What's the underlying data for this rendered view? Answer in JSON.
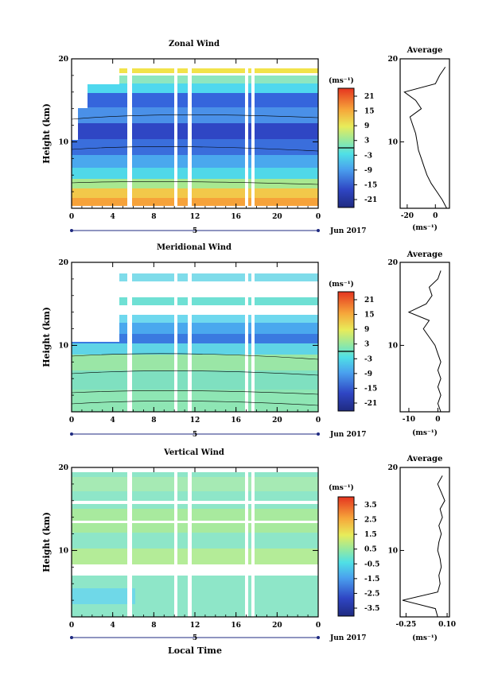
{
  "figure": {
    "xlabel": "Local Time",
    "date_label": "Jun 2017",
    "day_label": "5"
  },
  "chart_data": [
    {
      "type": "heatmap",
      "title": "Zonal Wind",
      "ylabel": "Height (km)",
      "xlim": [
        0,
        24
      ],
      "ylim": [
        2,
        20
      ],
      "x_ticks": [
        "0",
        "4",
        "8",
        "12",
        "16",
        "20",
        "0"
      ],
      "y_ticks": [
        "10",
        "20"
      ],
      "colorbar": {
        "unit": "(ms⁻¹)",
        "ticks": [
          "21",
          "15",
          "9",
          "3",
          "-3",
          "-9",
          "-15",
          "-21"
        ],
        "range": [
          -24,
          24
        ]
      },
      "profile": {
        "title": "Average",
        "unit": "(ms⁻¹)",
        "x_ticks": [
          "-20",
          "0"
        ],
        "xlim": [
          -25,
          10
        ],
        "heights": [
          2,
          3,
          4,
          5,
          6,
          7,
          8,
          9,
          10,
          11,
          12,
          13,
          14,
          15,
          16,
          17,
          18,
          19
        ],
        "values": [
          8,
          5,
          1,
          -3,
          -6,
          -8,
          -10,
          -12,
          -13,
          -14,
          -16,
          -18,
          -10,
          -14,
          -22,
          0,
          3,
          7
        ]
      }
    },
    {
      "type": "heatmap",
      "title": "Meridional Wind",
      "ylabel": "Height (km)",
      "xlim": [
        0,
        24
      ],
      "ylim": [
        2,
        20
      ],
      "x_ticks": [
        "0",
        "4",
        "8",
        "12",
        "16",
        "20",
        "0"
      ],
      "y_ticks": [
        "10",
        "20"
      ],
      "colorbar": {
        "unit": "(ms⁻¹)",
        "ticks": [
          "21",
          "15",
          "9",
          "3",
          "-3",
          "-9",
          "-15",
          "-21"
        ],
        "range": [
          -24,
          24
        ]
      },
      "profile": {
        "title": "Average",
        "unit": "(ms⁻¹)",
        "x_ticks": [
          "-10",
          "0"
        ],
        "xlim": [
          -13,
          4
        ],
        "heights": [
          2,
          3,
          4,
          5,
          6,
          7,
          8,
          9,
          10,
          11,
          12,
          13,
          14,
          15,
          16,
          17,
          18,
          19
        ],
        "values": [
          1,
          0,
          1,
          0,
          1,
          0,
          1,
          0,
          -1,
          -3,
          -5,
          -3,
          -10,
          -4,
          -2,
          -3,
          0,
          1
        ]
      }
    },
    {
      "type": "heatmap",
      "title": "Vertical Wind",
      "ylabel": "Height (km)",
      "xlim": [
        0,
        24
      ],
      "ylim": [
        2,
        20
      ],
      "x_ticks": [
        "0",
        "4",
        "8",
        "12",
        "16",
        "20",
        "0"
      ],
      "y_ticks": [
        "10",
        "20"
      ],
      "colorbar": {
        "unit": "(ms⁻¹)",
        "ticks": [
          "3.5",
          "2.5",
          "1.5",
          "0.5",
          "-0.5",
          "-1.5",
          "-2.5",
          "-3.5"
        ],
        "range": [
          -4,
          4
        ]
      },
      "profile": {
        "title": "Average",
        "unit": "(ms⁻¹)",
        "x_ticks": [
          "-0.25",
          "0.10"
        ],
        "xlim": [
          -0.3,
          0.12
        ],
        "heights": [
          2,
          3,
          4,
          5,
          6,
          7,
          8,
          9,
          10,
          11,
          12,
          13,
          14,
          15,
          16,
          17,
          18,
          19
        ],
        "values": [
          0.02,
          0.0,
          -0.28,
          0.02,
          0.04,
          0.03,
          0.05,
          0.04,
          0.02,
          0.03,
          0.05,
          0.03,
          0.06,
          0.04,
          0.08,
          0.05,
          0.02,
          0.06
        ]
      }
    }
  ]
}
